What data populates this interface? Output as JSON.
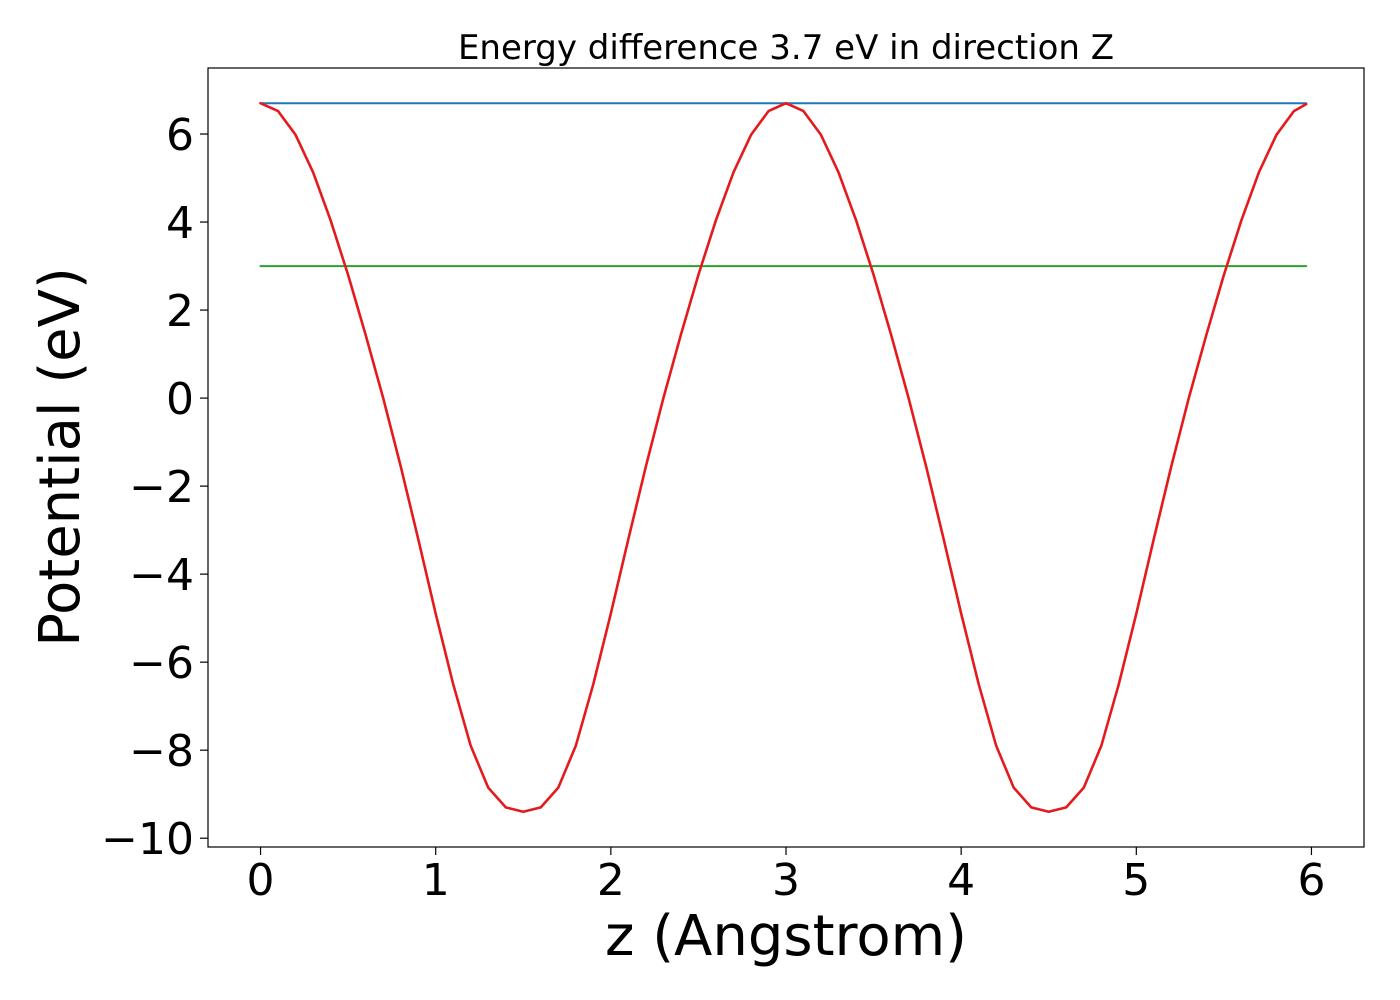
{
  "chart_data": {
    "type": "line",
    "title": "Energy difference 3.7 eV in direction Z",
    "xlabel": "z (Angstrom)",
    "ylabel": "Potential (eV)",
    "xlim": [
      -0.3,
      6.3
    ],
    "ylim": [
      -10.2,
      7.5
    ],
    "xticks": [
      0,
      1,
      2,
      3,
      4,
      5,
      6
    ],
    "xtick_labels": [
      "0",
      "1",
      "2",
      "3",
      "4",
      "5",
      "6"
    ],
    "yticks": [
      -10,
      -8,
      -6,
      -4,
      -2,
      0,
      2,
      4,
      6
    ],
    "ytick_labels": [
      "−10",
      "−8",
      "−6",
      "−4",
      "−2",
      "0",
      "2",
      "4",
      "6"
    ],
    "grid": false,
    "series": [
      {
        "color": "#1f77b4",
        "x": [
          0,
          5.97
        ],
        "y": [
          6.7,
          6.7
        ]
      },
      {
        "color": "#2ca02c",
        "x": [
          0,
          5.97
        ],
        "y": [
          3.0,
          3.0
        ]
      },
      {
        "color": "#e41a1c",
        "x": [
          0.0,
          0.1,
          0.2,
          0.3,
          0.4,
          0.5,
          0.6,
          0.7,
          0.8,
          0.9,
          1.0,
          1.1,
          1.2,
          1.3,
          1.4,
          1.5,
          1.6,
          1.7,
          1.8,
          1.9,
          2.0,
          2.1,
          2.2,
          2.3,
          2.4,
          2.5,
          2.6,
          2.7,
          2.8,
          2.9,
          3.0,
          3.1,
          3.2,
          3.3,
          3.4,
          3.5,
          3.6,
          3.7,
          3.8,
          3.9,
          4.0,
          4.1,
          4.2,
          4.3,
          4.4,
          4.5,
          4.6,
          4.7,
          4.8,
          4.9,
          5.0,
          5.1,
          5.2,
          5.3,
          5.4,
          5.5,
          5.6,
          5.7,
          5.8,
          5.9,
          5.97
        ],
        "y": [
          6.7,
          6.52,
          5.98,
          5.13,
          4.04,
          2.8,
          1.44,
          0.0,
          -1.55,
          -3.2,
          -4.9,
          -6.5,
          -7.9,
          -8.85,
          -9.3,
          -9.4,
          -9.3,
          -8.85,
          -7.9,
          -6.5,
          -4.9,
          -3.2,
          -1.55,
          0.0,
          1.44,
          2.8,
          4.04,
          5.13,
          5.98,
          6.52,
          6.7,
          6.52,
          5.98,
          5.13,
          4.04,
          2.8,
          1.44,
          0.0,
          -1.55,
          -3.2,
          -4.9,
          -6.5,
          -7.9,
          -8.85,
          -9.3,
          -9.4,
          -9.3,
          -8.85,
          -7.9,
          -6.5,
          -4.9,
          -3.2,
          -1.55,
          0.0,
          1.44,
          2.8,
          4.04,
          5.13,
          5.98,
          6.52,
          6.68
        ]
      }
    ]
  }
}
